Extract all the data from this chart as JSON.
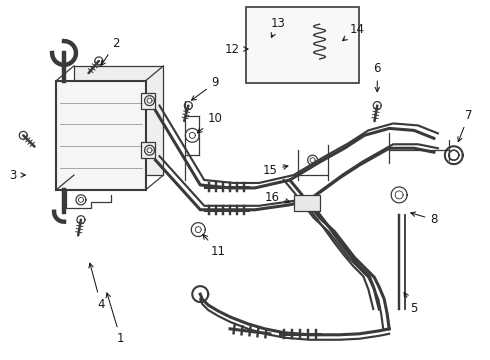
{
  "bg_color": "#ffffff",
  "line_color": "#3a3a3a",
  "label_color": "#1a1a1a",
  "lw_main": 1.5,
  "lw_thin": 0.9,
  "lw_pipe": 2.2
}
